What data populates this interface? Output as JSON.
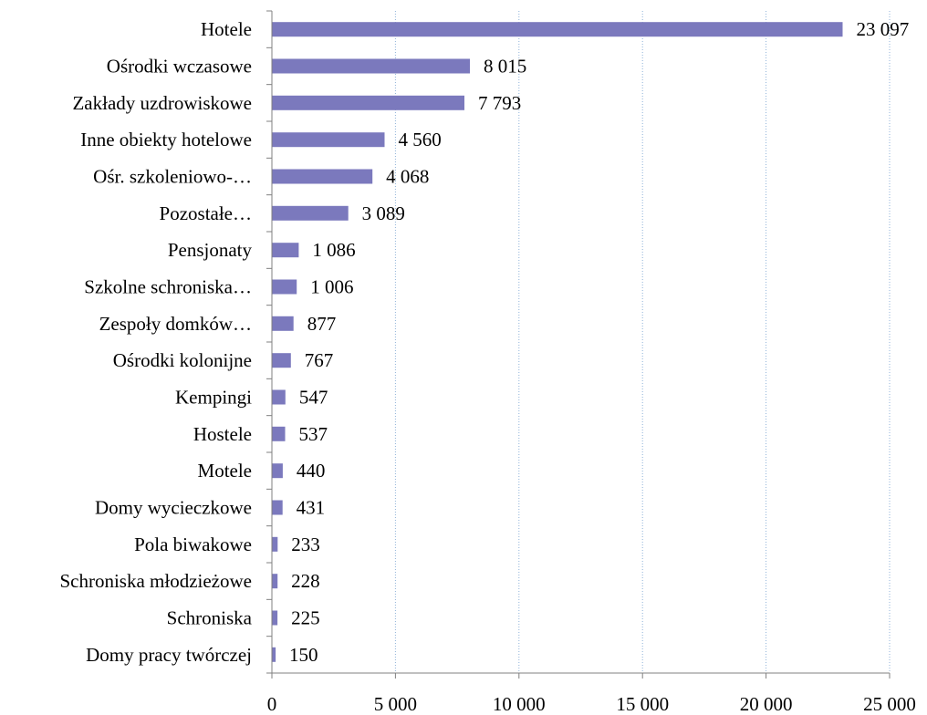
{
  "chart_data": {
    "type": "bar",
    "orientation": "horizontal",
    "categories": [
      "Hotele",
      "Ośrodki wczasowe",
      "Zakłady uzdrowiskowe",
      "Inne obiekty hotelowe",
      "Ośr. szkoleniowo-…",
      "Pozostałe…",
      "Pensjonaty",
      "Szkolne schroniska…",
      "Zespoły domków…",
      "Ośrodki kolonijne",
      "Kempingi",
      "Hostele",
      "Motele",
      "Domy wycieczkowe",
      "Pola biwakowe",
      "Schroniska młodzieżowe",
      "Schroniska",
      "Domy pracy twórczej"
    ],
    "values": [
      23097,
      8015,
      7793,
      4560,
      4068,
      3089,
      1086,
      1006,
      877,
      767,
      547,
      537,
      440,
      431,
      233,
      228,
      225,
      150
    ],
    "value_labels": [
      "23 097",
      "8 015",
      "7 793",
      "4 560",
      "4 068",
      "3 089",
      "1 086",
      "1 006",
      "877",
      "767",
      "547",
      "537",
      "440",
      "431",
      "233",
      "228",
      "225",
      "150"
    ],
    "xlim": [
      0,
      25000
    ],
    "x_ticks": [
      0,
      5000,
      10000,
      15000,
      20000,
      25000
    ],
    "x_tick_labels": [
      "0",
      "5 000",
      "10 000",
      "15 000",
      "20 000",
      "25 000"
    ],
    "title": "",
    "xlabel": "",
    "ylabel": "",
    "grid": "vertical dotted",
    "legend": "none",
    "colors": {
      "bar": "#7b79bd",
      "axis": "#808080",
      "grid": "#8fb2d9"
    }
  }
}
